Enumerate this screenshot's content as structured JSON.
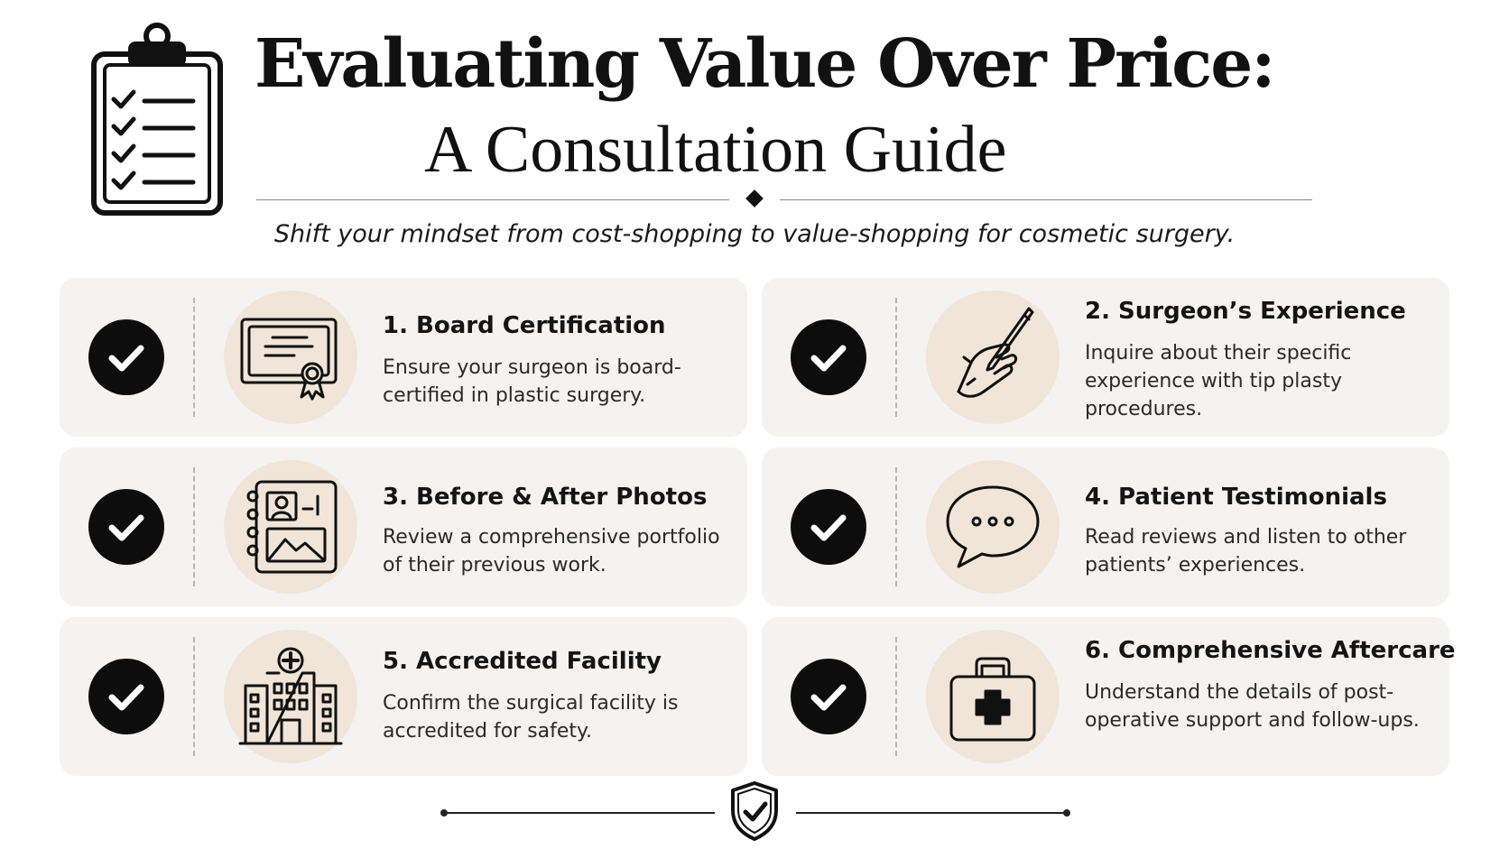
{
  "header": {
    "title_line1": "Evaluating Value Over Price:",
    "title_line2": "A Consultation Guide",
    "subtitle": "Shift your mindset from cost-shopping to value-shopping for cosmetic surgery."
  },
  "cards": [
    {
      "title": "1. Board Certification",
      "description": "Ensure your surgeon is board-certified in plastic surgery.",
      "icon": "certificate-icon",
      "checked": true
    },
    {
      "title": "2. Surgeon’s Experience",
      "description": "Inquire about their specific experience with tip plasty procedures.",
      "icon": "hand-scalpel-icon",
      "checked": true
    },
    {
      "title": "3. Before & After Photos",
      "description": "Review a comprehensive portfolio of their previous work.",
      "icon": "photo-album-icon",
      "checked": true
    },
    {
      "title": "4. Patient Testimonials",
      "description": "Read reviews and listen to other patients’ experiences.",
      "icon": "speech-bubble-icon",
      "checked": true
    },
    {
      "title": "5. Accredited Facility",
      "description": "Confirm the surgical facility is accredited for safety.",
      "icon": "hospital-icon",
      "checked": true
    },
    {
      "title": "6. Comprehensive Aftercare",
      "description": "Understand the details of post-operative support and follow-ups.",
      "icon": "medical-kit-icon",
      "checked": true
    }
  ],
  "footer": {
    "icon": "shield-check-icon"
  },
  "colors": {
    "card_bg": "#f4f3f2",
    "icon_disc": "#f0e5d8",
    "ink": "#111111"
  }
}
